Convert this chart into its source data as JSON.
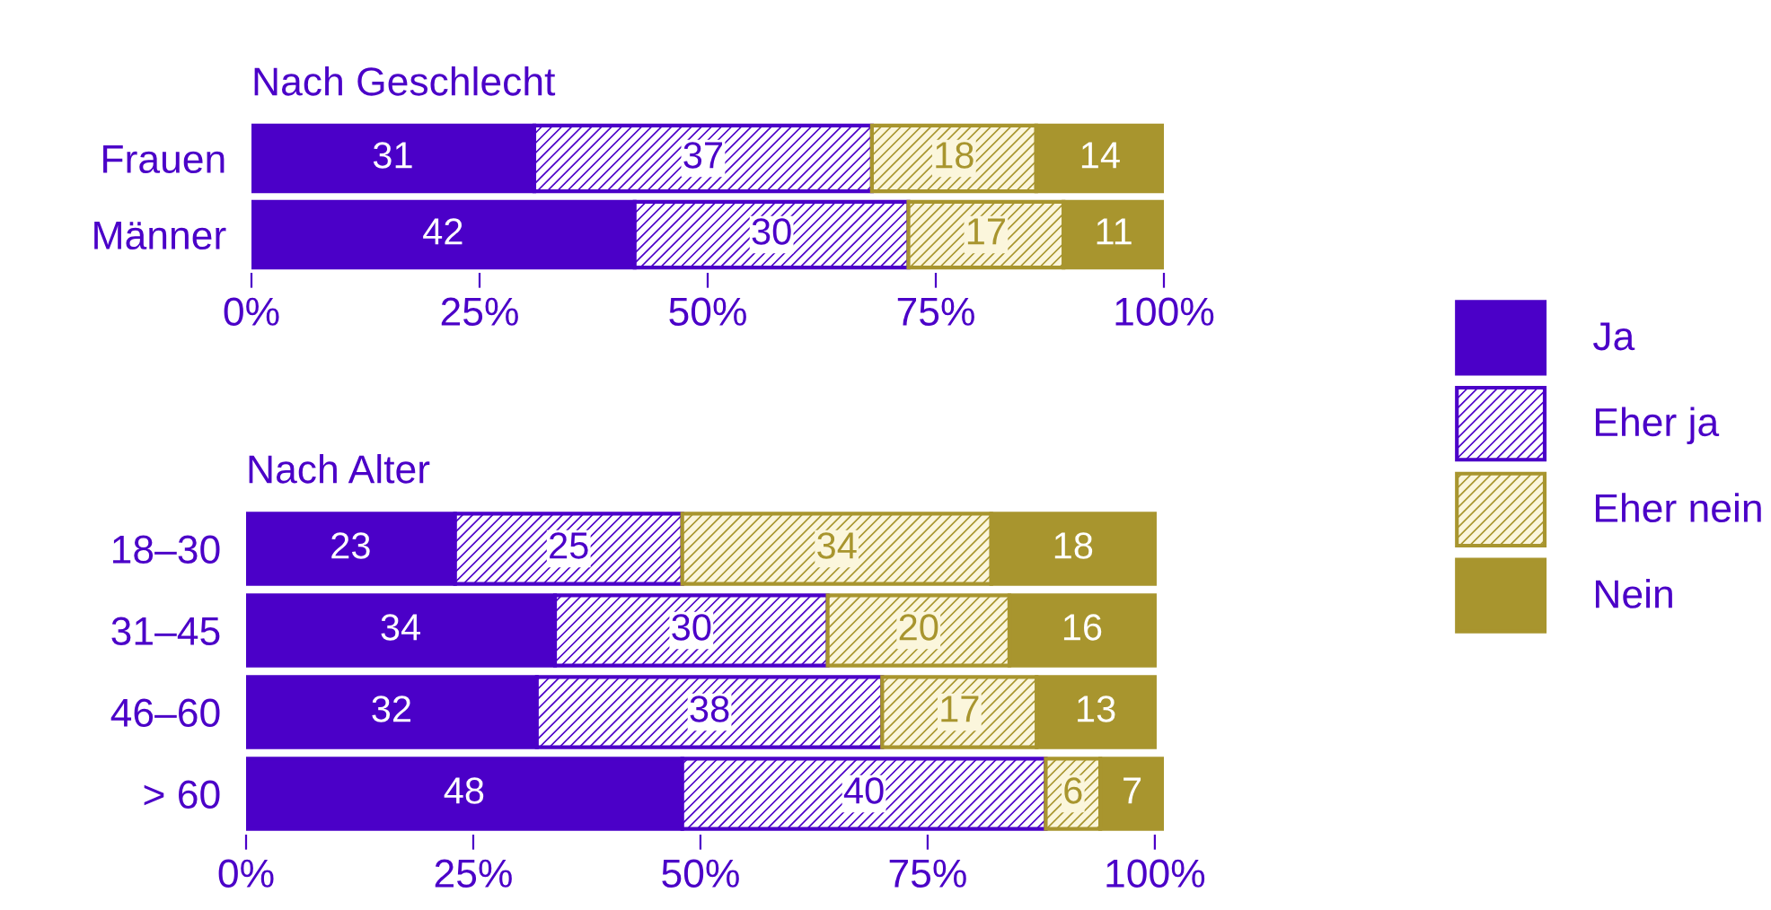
{
  "chart_data": [
    {
      "type": "bar",
      "title": "Nach Geschlecht",
      "orientation": "horizontal",
      "stacked": true,
      "categories": [
        "Frauen",
        "Männer"
      ],
      "xlim": [
        0,
        100
      ],
      "xticks": [
        {
          "value": 0,
          "label": "0%"
        },
        {
          "value": 25,
          "label": "25%"
        },
        {
          "value": 50,
          "label": "50%"
        },
        {
          "value": 75,
          "label": "75%"
        },
        {
          "value": 100,
          "label": "100%"
        }
      ],
      "data_labels": true,
      "grid": false,
      "legend": "right",
      "series": [
        {
          "name": "Ja",
          "color": "#4b00c8",
          "values": [
            31,
            42
          ]
        },
        {
          "name": "Eher ja",
          "color": "#4b00c8",
          "values": [
            37,
            30
          ]
        },
        {
          "name": "Eher nein",
          "color": "#a8952e",
          "values": [
            18,
            17
          ]
        },
        {
          "name": "Nein",
          "color": "#a8952e",
          "values": [
            14,
            11
          ]
        }
      ]
    },
    {
      "type": "bar",
      "title": "Nach Alter",
      "orientation": "horizontal",
      "stacked": true,
      "categories": [
        "18–30",
        "31–45",
        "46–60",
        "> 60"
      ],
      "xlim": [
        0,
        101
      ],
      "xticks": [
        {
          "value": 0,
          "label": "0%"
        },
        {
          "value": 25,
          "label": "25%"
        },
        {
          "value": 50,
          "label": "50%"
        },
        {
          "value": 75,
          "label": "75%"
        },
        {
          "value": 100,
          "label": "100%"
        }
      ],
      "data_labels": true,
      "grid": false,
      "series": [
        {
          "color": "#4b00c8",
          "values": [
            23,
            34,
            32,
            48
          ]
        },
        {
          "color": "#4b00c8",
          "values": [
            25,
            30,
            38,
            40
          ]
        },
        {
          "color": "#a8952e",
          "values": [
            34,
            20,
            17,
            6
          ]
        },
        {
          "color": "#a8952e",
          "values": [
            18,
            16,
            13,
            7
          ]
        }
      ]
    }
  ]
}
